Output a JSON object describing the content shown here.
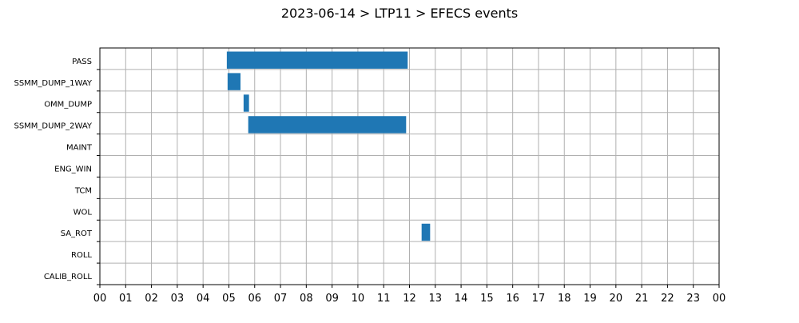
{
  "chart_data": {
    "type": "gantt",
    "title": "2023-06-14 > LTP11 > EFECS events",
    "x_unit": "hour of day",
    "xlim": [
      0,
      24
    ],
    "x_tick_labels": [
      "00",
      "01",
      "02",
      "03",
      "04",
      "05",
      "06",
      "07",
      "08",
      "09",
      "10",
      "11",
      "12",
      "13",
      "14",
      "15",
      "16",
      "17",
      "18",
      "19",
      "20",
      "21",
      "22",
      "23",
      "00"
    ],
    "categories": [
      "PASS",
      "SSMM_DUMP_1WAY",
      "OMM_DUMP",
      "SSMM_DUMP_2WAY",
      "MAINT",
      "ENG_WIN",
      "TCM",
      "WOL",
      "SA_ROT",
      "ROLL",
      "CALIB_ROLL"
    ],
    "grid": true,
    "bar_color": "#1f77b4",
    "events": [
      {
        "category": "PASS",
        "start": 4.92,
        "end": 11.93
      },
      {
        "category": "SSMM_DUMP_1WAY",
        "start": 4.95,
        "end": 5.45
      },
      {
        "category": "OMM_DUMP",
        "start": 5.57,
        "end": 5.78
      },
      {
        "category": "SSMM_DUMP_2WAY",
        "start": 5.75,
        "end": 11.87
      },
      {
        "category": "SA_ROT",
        "start": 12.47,
        "end": 12.8
      }
    ]
  }
}
